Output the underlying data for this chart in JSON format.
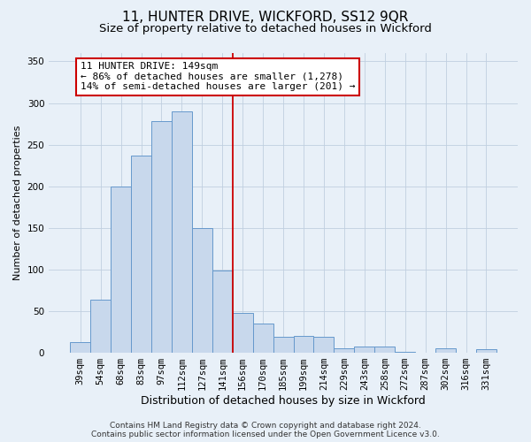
{
  "title": "11, HUNTER DRIVE, WICKFORD, SS12 9QR",
  "subtitle": "Size of property relative to detached houses in Wickford",
  "xlabel": "Distribution of detached houses by size in Wickford",
  "ylabel": "Number of detached properties",
  "footer_lines": [
    "Contains HM Land Registry data © Crown copyright and database right 2024.",
    "Contains public sector information licensed under the Open Government Licence v3.0."
  ],
  "bar_labels": [
    "39sqm",
    "54sqm",
    "68sqm",
    "83sqm",
    "97sqm",
    "112sqm",
    "127sqm",
    "141sqm",
    "156sqm",
    "170sqm",
    "185sqm",
    "199sqm",
    "214sqm",
    "229sqm",
    "243sqm",
    "258sqm",
    "272sqm",
    "287sqm",
    "302sqm",
    "316sqm",
    "331sqm"
  ],
  "bar_values": [
    13,
    64,
    200,
    237,
    278,
    290,
    150,
    99,
    48,
    35,
    19,
    20,
    19,
    5,
    8,
    8,
    1,
    0,
    5,
    0,
    4
  ],
  "bar_color": "#c8d8ec",
  "bar_edgecolor": "#6699cc",
  "vline_x_index": 7.5,
  "vline_color": "#cc0000",
  "annotation_line1": "11 HUNTER DRIVE: 149sqm",
  "annotation_line2": "← 86% of detached houses are smaller (1,278)",
  "annotation_line3": "14% of semi-detached houses are larger (201) →",
  "annotation_box_edgecolor": "#cc0000",
  "annotation_box_facecolor": "#ffffff",
  "bg_color": "#e8f0f8",
  "plot_bg_color": "#e8f0f8",
  "ylim": [
    0,
    360
  ],
  "yticks": [
    0,
    50,
    100,
    150,
    200,
    250,
    300,
    350
  ],
  "title_fontsize": 11,
  "subtitle_fontsize": 9.5,
  "xlabel_fontsize": 9,
  "ylabel_fontsize": 8,
  "tick_fontsize": 7.5,
  "annotation_fontsize": 8,
  "footer_fontsize": 6.5
}
